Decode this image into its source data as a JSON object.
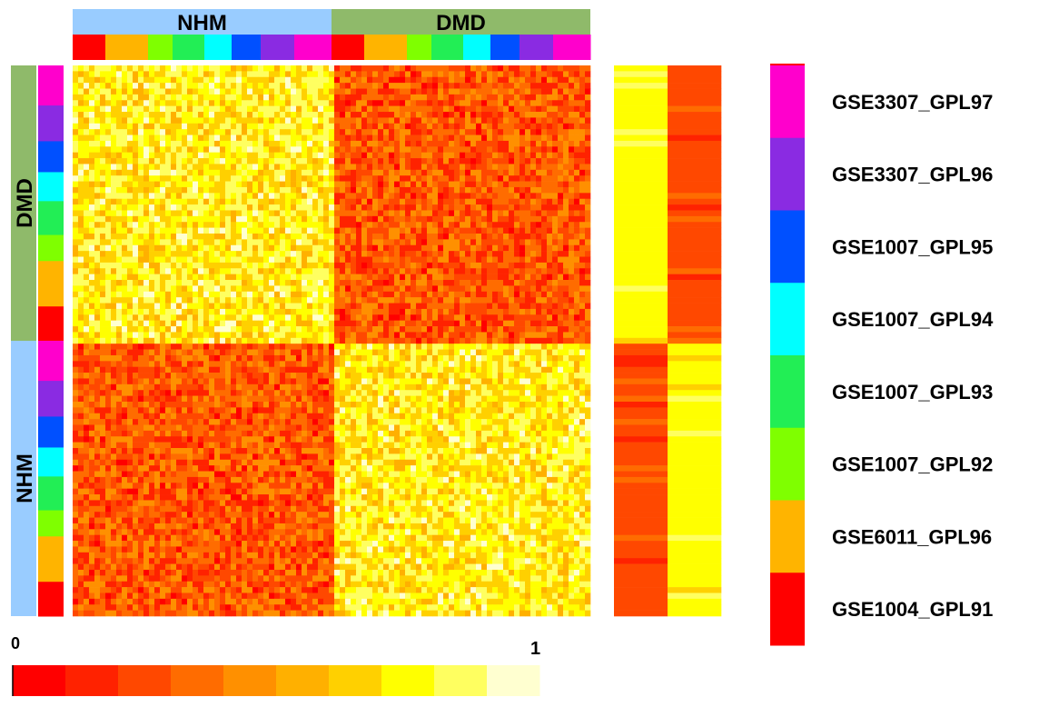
{
  "chart_data": {
    "type": "heatmap",
    "description_free": true,
    "groups": [
      {
        "label": "NHM",
        "color": "#99ccff"
      },
      {
        "label": "DMD",
        "color": "#8fba6a"
      }
    ],
    "datasets": [
      {
        "label": "GSE1004_GPL91",
        "color": "#ff0000"
      },
      {
        "label": "GSE6011_GPL96",
        "color": "#ffb400"
      },
      {
        "label": "GSE1007_GPL92",
        "color": "#7fff00"
      },
      {
        "label": "GSE1007_GPL93",
        "color": "#22ee55"
      },
      {
        "label": "GSE1007_GPL94",
        "color": "#00ffff"
      },
      {
        "label": "GSE1007_GPL95",
        "color": "#0050ff"
      },
      {
        "label": "GSE3307_GPL96",
        "color": "#8a2be2"
      },
      {
        "label": "GSE3307_GPL97",
        "color": "#ff00cc"
      }
    ],
    "column_dataset_order": [
      "GSE1004_GPL91",
      "GSE6011_GPL96",
      "GSE1007_GPL92",
      "GSE1007_GPL93",
      "GSE1007_GPL94",
      "GSE1007_GPL95",
      "GSE3307_GPL96",
      "GSE3307_GPL97"
    ],
    "block_values": {
      "within_group": 0.3,
      "between_group": 0.75
    },
    "side_panel_columns": [
      {
        "group": "NHM",
        "value_for_DMD_rows": 0.75,
        "value_for_NHM_rows": 0.25
      },
      {
        "group": "DMD",
        "value_for_DMD_rows": 0.25,
        "value_for_NHM_rows": 0.75
      }
    ],
    "colorbar": {
      "min_label": "0",
      "max_label": "1",
      "colors": [
        "#ff0000",
        "#ff2200",
        "#ff4800",
        "#ff6c00",
        "#ff9000",
        "#ffb000",
        "#ffd000",
        "#ffff00",
        "#ffff60",
        "#ffffd0"
      ]
    }
  }
}
